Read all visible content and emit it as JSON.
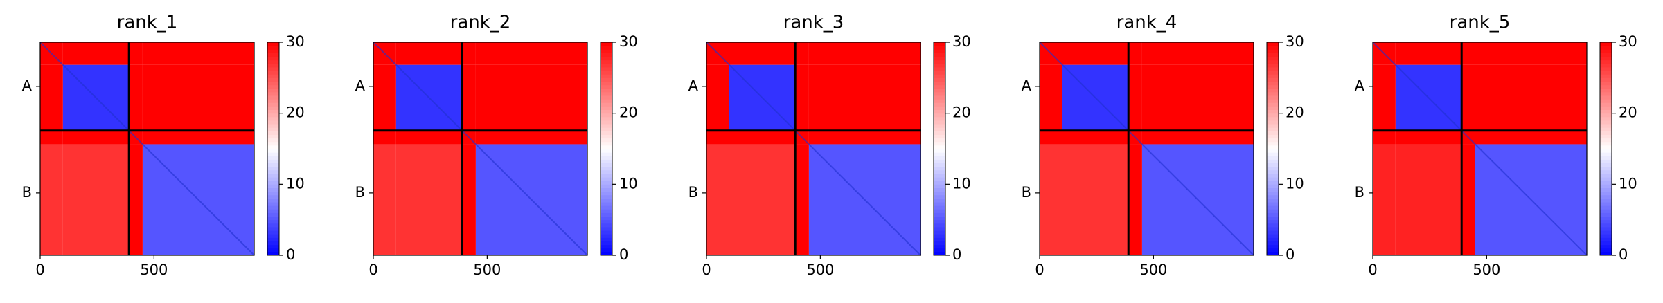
{
  "chart_data": [
    {
      "type": "heatmap",
      "title": "rank_1",
      "segments": [
        0,
        100,
        390,
        450,
        940
      ],
      "values": [
        [
          30,
          30,
          30,
          30
        ],
        [
          30,
          3,
          30,
          30
        ],
        [
          30,
          30,
          30,
          30
        ],
        [
          27,
          27,
          30,
          5
        ]
      ],
      "xlim": [
        0,
        940
      ],
      "ylim": [
        940,
        0
      ],
      "xticks": [
        0,
        500
      ],
      "yticks": [
        {
          "value": 195,
          "label": "A"
        },
        {
          "value": 665,
          "label": "B"
        }
      ],
      "chain_breaks": [
        390
      ],
      "clim": [
        0,
        30
      ],
      "cticks": [
        0,
        10,
        20,
        30
      ],
      "colormap": "bwr"
    },
    {
      "type": "heatmap",
      "title": "rank_2",
      "segments": [
        0,
        100,
        390,
        450,
        940
      ],
      "values": [
        [
          30,
          30,
          30,
          30
        ],
        [
          30,
          3,
          30,
          30
        ],
        [
          30,
          30,
          30,
          30
        ],
        [
          27,
          27,
          30,
          5
        ]
      ],
      "xlim": [
        0,
        940
      ],
      "ylim": [
        940,
        0
      ],
      "xticks": [
        0,
        500
      ],
      "yticks": [
        {
          "value": 195,
          "label": "A"
        },
        {
          "value": 665,
          "label": "B"
        }
      ],
      "chain_breaks": [
        390
      ],
      "clim": [
        0,
        30
      ],
      "cticks": [
        0,
        10,
        20,
        30
      ],
      "colormap": "bwr"
    },
    {
      "type": "heatmap",
      "title": "rank_3",
      "segments": [
        0,
        100,
        390,
        450,
        940
      ],
      "values": [
        [
          30,
          30,
          30,
          30
        ],
        [
          30,
          3,
          30,
          30
        ],
        [
          30,
          30,
          30,
          30
        ],
        [
          27,
          27,
          30,
          5
        ]
      ],
      "xlim": [
        0,
        940
      ],
      "ylim": [
        940,
        0
      ],
      "xticks": [
        0,
        500
      ],
      "yticks": [
        {
          "value": 195,
          "label": "A"
        },
        {
          "value": 665,
          "label": "B"
        }
      ],
      "chain_breaks": [
        390
      ],
      "clim": [
        0,
        30
      ],
      "cticks": [
        0,
        10,
        20,
        30
      ],
      "colormap": "bwr"
    },
    {
      "type": "heatmap",
      "title": "rank_4",
      "segments": [
        0,
        100,
        390,
        450,
        940
      ],
      "values": [
        [
          30,
          30,
          30,
          30
        ],
        [
          30,
          3,
          30,
          30
        ],
        [
          30,
          30,
          30,
          30
        ],
        [
          27,
          27,
          30,
          5
        ]
      ],
      "xlim": [
        0,
        940
      ],
      "ylim": [
        940,
        0
      ],
      "xticks": [
        0,
        500
      ],
      "yticks": [
        {
          "value": 195,
          "label": "A"
        },
        {
          "value": 665,
          "label": "B"
        }
      ],
      "chain_breaks": [
        390
      ],
      "clim": [
        0,
        30
      ],
      "cticks": [
        0,
        10,
        20,
        30
      ],
      "colormap": "bwr"
    },
    {
      "type": "heatmap",
      "title": "rank_5",
      "segments": [
        0,
        100,
        390,
        450,
        940
      ],
      "values": [
        [
          30,
          30,
          30,
          30
        ],
        [
          30,
          3,
          30,
          30
        ],
        [
          30,
          30,
          30,
          30
        ],
        [
          28,
          28,
          30,
          5
        ]
      ],
      "xlim": [
        0,
        940
      ],
      "ylim": [
        940,
        0
      ],
      "xticks": [
        0,
        500
      ],
      "yticks": [
        {
          "value": 195,
          "label": "A"
        },
        {
          "value": 665,
          "label": "B"
        }
      ],
      "chain_breaks": [
        390
      ],
      "clim": [
        0,
        30
      ],
      "cticks": [
        0,
        10,
        20,
        30
      ],
      "colormap": "bwr"
    }
  ]
}
